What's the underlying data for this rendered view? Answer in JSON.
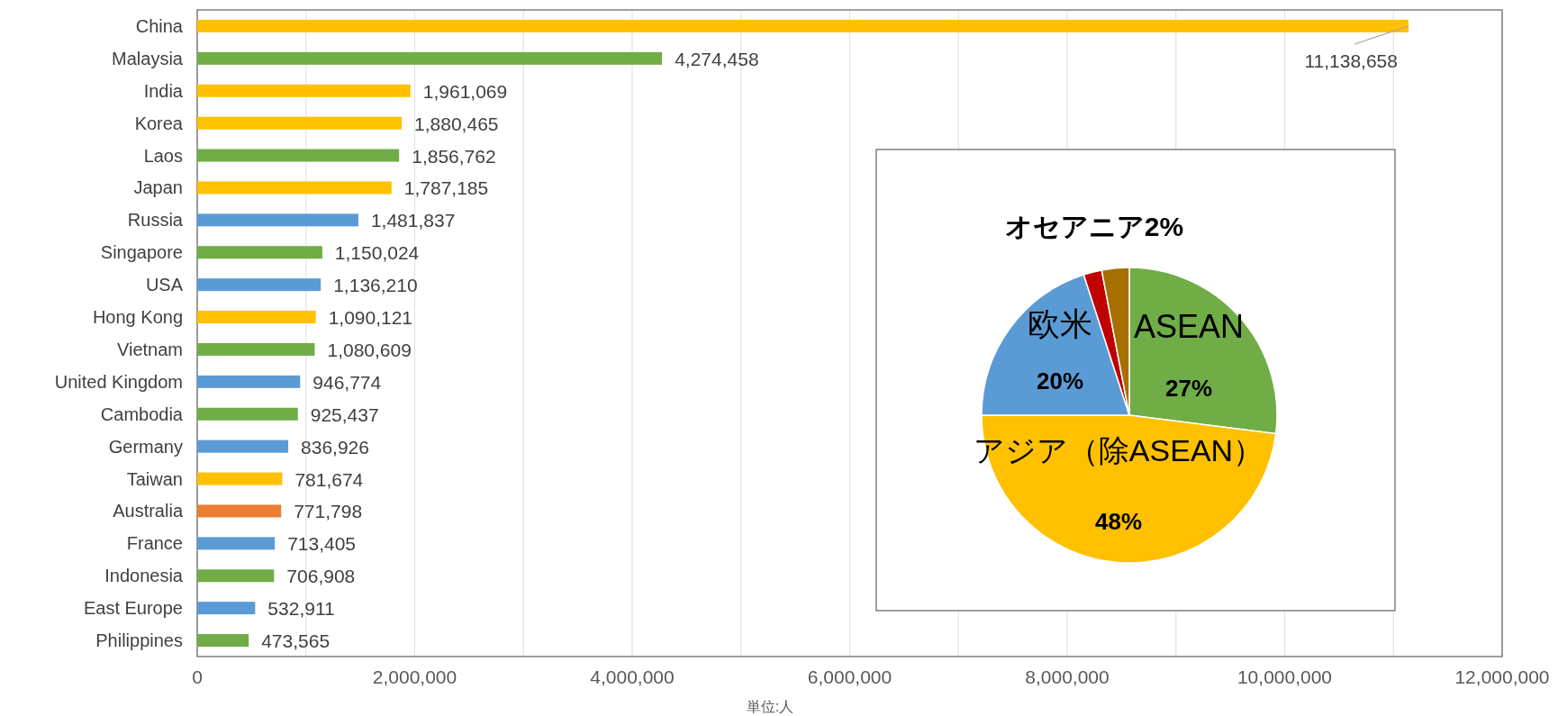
{
  "chart_data": [
    {
      "type": "bar",
      "orientation": "horizontal",
      "xlabel": "単位:人",
      "categories": [
        "China",
        "Malaysia",
        "India",
        "Korea",
        "Laos",
        "Japan",
        "Russia",
        "Singapore",
        "USA",
        "Hong Kong",
        "Vietnam",
        "United Kingdom",
        "Cambodia",
        "Germany",
        "Taiwan",
        "Australia",
        "France",
        "Indonesia",
        "East Europe",
        "Philippines"
      ],
      "values": [
        11138658,
        4274458,
        1961069,
        1880465,
        1856762,
        1787185,
        1481837,
        1150024,
        1136210,
        1090121,
        1080609,
        946774,
        925437,
        836926,
        781674,
        771798,
        713405,
        706908,
        532911,
        473565
      ],
      "colors": [
        "#ffc000",
        "#70ad47",
        "#ffc000",
        "#ffc000",
        "#70ad47",
        "#ffc000",
        "#5b9bd5",
        "#70ad47",
        "#5b9bd5",
        "#ffc000",
        "#70ad47",
        "#5b9bd5",
        "#70ad47",
        "#5b9bd5",
        "#ffc000",
        "#ed7d31",
        "#5b9bd5",
        "#70ad47",
        "#5b9bd5",
        "#70ad47"
      ],
      "value_labels": [
        "11,138,658",
        "4,274,458",
        "1,961,069",
        "1,880,465",
        "1,856,762",
        "1,787,185",
        "1,481,837",
        "1,150,024",
        "1,136,210",
        "1,090,121",
        "1,080,609",
        "946,774",
        "925,437",
        "836,926",
        "781,674",
        "771,798",
        "713,405",
        "706,908",
        "532,911",
        "473,565"
      ],
      "xlim": [
        0,
        12000000
      ],
      "xticks": [
        0,
        {
          "value": 1000000,
          "label": null
        },
        {
          "value": 2000000,
          "label": "2,000,000"
        },
        {
          "value": 3000000,
          "label": null
        },
        {
          "value": 4000000,
          "label": "4,000,000"
        },
        {
          "value": 5000000,
          "label": null
        },
        {
          "value": 6000000,
          "label": "6,000,000"
        },
        {
          "value": 7000000,
          "label": null
        },
        {
          "value": 8000000,
          "label": "8,000,000"
        },
        {
          "value": 9000000,
          "label": null
        },
        {
          "value": 10000000,
          "label": "10,000,000"
        },
        {
          "value": 11000000,
          "label": null
        },
        {
          "value": 12000000,
          "label": "12,000,000"
        }
      ],
      "grid": "x"
    },
    {
      "type": "pie",
      "categories": [
        "ASEAN",
        "アジア（除ASEAN）",
        "欧米",
        "オセアニア",
        null
      ],
      "values": [
        27,
        48,
        20,
        2,
        3
      ],
      "colors": [
        "#70ad47",
        "#ffc000",
        "#5b9bd5",
        "#c00000",
        "#a66f00"
      ],
      "value_labels": [
        "27%",
        "48%",
        "20%",
        "2%",
        null
      ]
    }
  ]
}
